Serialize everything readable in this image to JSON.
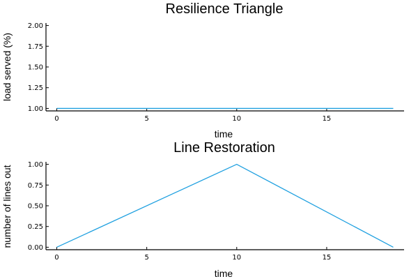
{
  "chart_data": [
    {
      "type": "line",
      "title": "Resilience Triangle",
      "xlabel": "time",
      "ylabel": "load served (%)",
      "xlim": [
        -0.6,
        19.3
      ],
      "ylim": [
        0.97,
        2.03
      ],
      "xticks": [
        0,
        5,
        10,
        15
      ],
      "xtick_labels": [
        "0",
        "5",
        "10",
        "15"
      ],
      "yticks": [
        1.0,
        1.25,
        1.5,
        1.75,
        2.0
      ],
      "ytick_labels": [
        "1.00",
        "1.25",
        "1.50",
        "1.75",
        "2.00"
      ],
      "grid": false,
      "series": [
        {
          "color": "#1fa0e0",
          "x": [
            0,
            18.7
          ],
          "y": [
            1.0,
            1.0
          ]
        }
      ]
    },
    {
      "type": "line",
      "title": "Line Restoration",
      "xlabel": "time",
      "ylabel": "number of lines out",
      "xlim": [
        -0.6,
        19.3
      ],
      "ylim": [
        -0.03,
        1.03
      ],
      "xticks": [
        0,
        5,
        10,
        15
      ],
      "xtick_labels": [
        "0",
        "5",
        "10",
        "15"
      ],
      "yticks": [
        0,
        0.25,
        0.5,
        0.75,
        1.0
      ],
      "ytick_labels": [
        "0.00",
        "0.25",
        "0.50",
        "0.75",
        "1.00"
      ],
      "grid": false,
      "series": [
        {
          "color": "#1fa0e0",
          "x": [
            0,
            10,
            18.7
          ],
          "y": [
            0,
            1,
            0
          ]
        }
      ]
    }
  ]
}
